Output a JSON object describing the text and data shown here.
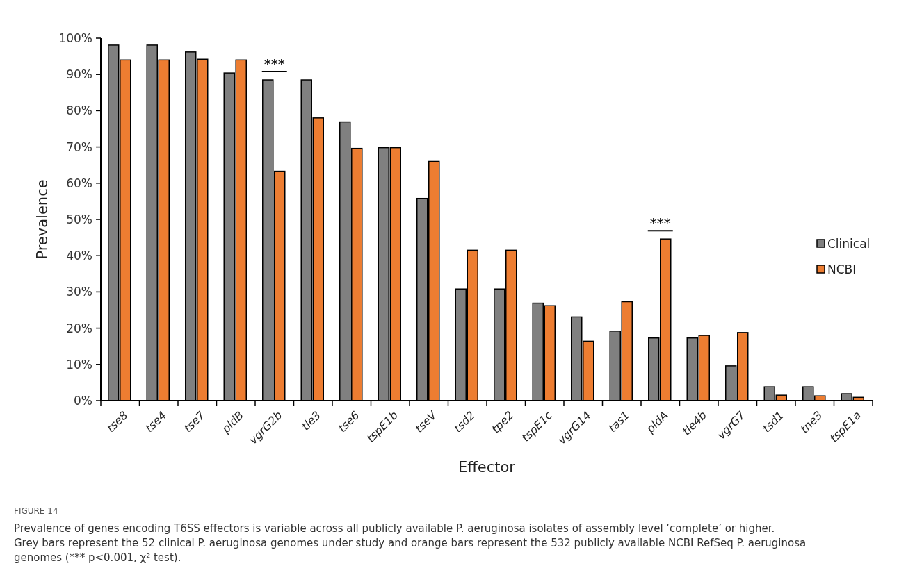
{
  "chart_data": {
    "type": "bar",
    "xlabel": "Effector",
    "ylabel": "Prevalence",
    "categories": [
      "tse8",
      "tse4",
      "tse7",
      "pldB",
      "vgrG2b",
      "tle3",
      "tse6",
      "tspE1b",
      "tseV",
      "tsd2",
      "tpe2",
      "tspE1c",
      "vgrG14",
      "tas1",
      "pldA",
      "tle4b",
      "vgrG7",
      "tsd1",
      "tne3",
      "tspE1a"
    ],
    "series": [
      {
        "name": "Clinical",
        "color": "#808080",
        "values": [
          98.1,
          98.1,
          96.2,
          90.4,
          88.5,
          88.5,
          76.9,
          69.8,
          55.8,
          30.8,
          30.8,
          26.9,
          23.1,
          19.2,
          17.3,
          17.3,
          9.6,
          3.8,
          3.8,
          1.9
        ]
      },
      {
        "name": "NCBI",
        "color": "#ed7d31",
        "values": [
          94.0,
          94.0,
          94.2,
          94.0,
          63.3,
          78.0,
          69.6,
          69.8,
          66.0,
          41.5,
          41.5,
          26.2,
          16.4,
          27.3,
          44.6,
          18.0,
          18.8,
          1.5,
          1.3,
          0.9
        ]
      }
    ],
    "ylim": [
      0,
      100
    ],
    "yticks": [
      {
        "value": 0,
        "label": "0%"
      },
      {
        "value": 10,
        "label": "10%"
      },
      {
        "value": 20,
        "label": "20%"
      },
      {
        "value": 30,
        "label": "30%"
      },
      {
        "value": 40,
        "label": "40%"
      },
      {
        "value": 50,
        "label": "50%"
      },
      {
        "value": 60,
        "label": "60%"
      },
      {
        "value": 70,
        "label": "70%"
      },
      {
        "value": 80,
        "label": "80%"
      },
      {
        "value": 90,
        "label": "90%"
      },
      {
        "value": 100,
        "label": "100%"
      }
    ],
    "legend": "right",
    "annotations": [
      "***",
      "***",
      "FIGURE 14",
      "Prevalence of genes encoding T6SS effectors is variable across all publicly available P. aeruginosa isolates of assembly level ‘complete’ or higher. Grey bars represent the 52 clinical P. aeruginosa genomes under study and orange bars represent the 532 publicly available NCBI RefSeq P. aeruginosa genomes (*** p<0.001, χ² test)."
    ]
  }
}
